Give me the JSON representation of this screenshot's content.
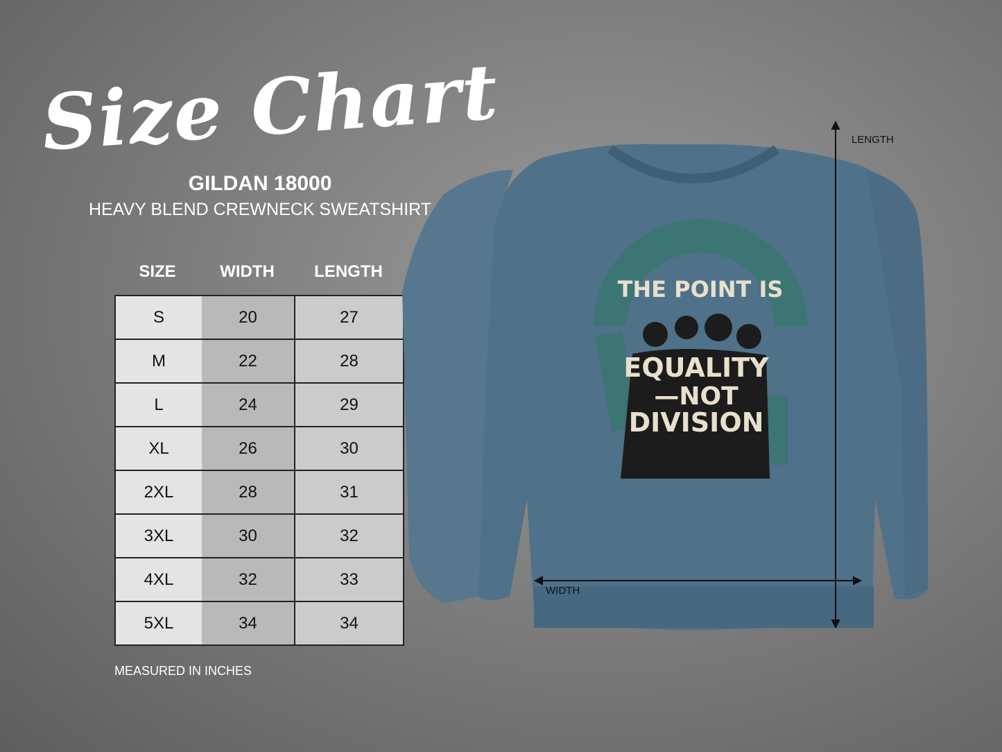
{
  "title": "Size Chart",
  "product": {
    "model": "GILDAN 18000",
    "name": "HEAVY BLEND CREWNECK SWEATSHIRT"
  },
  "table": {
    "headers": [
      "SIZE",
      "WIDTH",
      "LENGTH"
    ],
    "rows": [
      [
        "S",
        "20",
        "27"
      ],
      [
        "M",
        "22",
        "28"
      ],
      [
        "L",
        "24",
        "29"
      ],
      [
        "XL",
        "26",
        "30"
      ],
      [
        "2XL",
        "28",
        "31"
      ],
      [
        "3XL",
        "30",
        "32"
      ],
      [
        "4XL",
        "32",
        "33"
      ],
      [
        "5XL",
        "34",
        "34"
      ]
    ]
  },
  "note": "MEASURED IN INCHES",
  "diagram": {
    "length_label": "LENGTH",
    "width_label": "WIDTH"
  },
  "design": {
    "line1": "THE POINT IS",
    "line2": "EQUALITY",
    "line3": "—NOT",
    "line4": "DIVISION"
  },
  "colors": {
    "shirt": "#4f7189",
    "accent": "#3d7474",
    "print_text": "#e8e0cc"
  }
}
